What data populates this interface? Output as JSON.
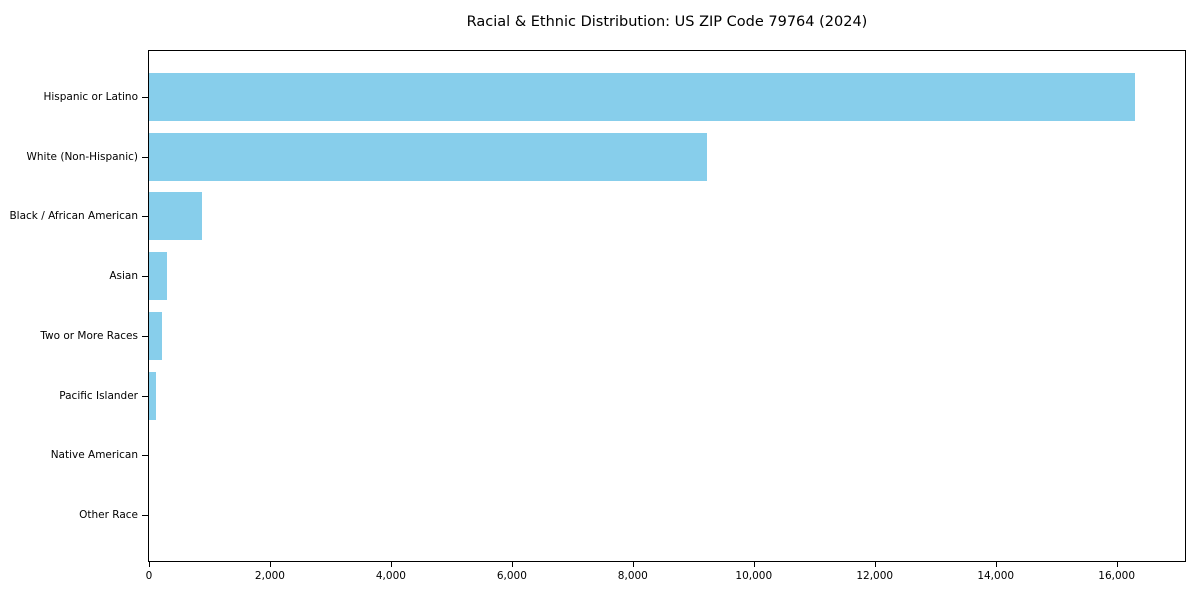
{
  "chart_data": {
    "type": "bar",
    "orientation": "horizontal",
    "title": "Racial & Ethnic Distribution: US ZIP Code 79764 (2024)",
    "categories": [
      "Hispanic or Latino",
      "White (Non-Hispanic)",
      "Black / African American",
      "Asian",
      "Two or More Races",
      "Pacific Islander",
      "Native American",
      "Other Race"
    ],
    "values": [
      16300,
      9230,
      870,
      300,
      210,
      110,
      0,
      0
    ],
    "bar_color": "#87CEEB",
    "axis_color": "#000000",
    "background_color": "#ffffff",
    "xlabel": "",
    "ylabel": "",
    "xlim": [
      0,
      17130
    ],
    "xticks": [
      0,
      2000,
      4000,
      6000,
      8000,
      10000,
      12000,
      14000,
      16000
    ],
    "xtick_labels": [
      "0",
      "2,000",
      "4,000",
      "6,000",
      "8,000",
      "10,000",
      "12,000",
      "14,000",
      "16,000"
    ],
    "grid": false,
    "legend": "none"
  }
}
